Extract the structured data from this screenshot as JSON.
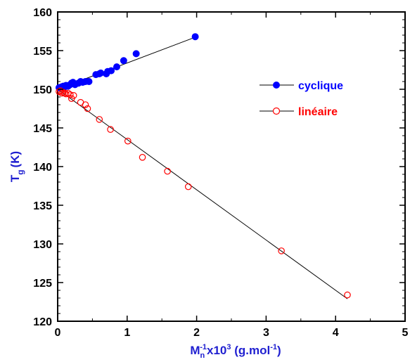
{
  "chart_data": {
    "type": "scatter",
    "xlim": [
      0,
      5
    ],
    "ylim": [
      120,
      160
    ],
    "x_ticks": [
      "0",
      "1",
      "2",
      "3",
      "4",
      "5"
    ],
    "y_ticks": [
      "120",
      "125",
      "130",
      "135",
      "140",
      "145",
      "150",
      "155",
      "160"
    ],
    "ylabel": {
      "base": "T",
      "sub": "g",
      "rest": "(K)"
    },
    "xlabel": {
      "base": "M",
      "sub": "n",
      "sup1": "-1",
      "mid": "x10",
      "sup2": "3",
      "tail": " (g.mol",
      "sup3": "-1",
      "end": ")"
    },
    "grid": false,
    "legend_position": "right-upper",
    "series": [
      {
        "name": "cyclique",
        "color": "#0000ff",
        "marker": "filled-circle",
        "points": [
          [
            0.02,
            150.2
          ],
          [
            0.05,
            150.3
          ],
          [
            0.08,
            150.4
          ],
          [
            0.1,
            150.3
          ],
          [
            0.12,
            150.5
          ],
          [
            0.15,
            150.4
          ],
          [
            0.18,
            150.6
          ],
          [
            0.2,
            150.8
          ],
          [
            0.22,
            150.9
          ],
          [
            0.25,
            150.6
          ],
          [
            0.3,
            150.8
          ],
          [
            0.33,
            151.0
          ],
          [
            0.36,
            150.9
          ],
          [
            0.4,
            151.0
          ],
          [
            0.45,
            151.0
          ],
          [
            0.55,
            151.9
          ],
          [
            0.6,
            152.0
          ],
          [
            0.62,
            152.1
          ],
          [
            0.7,
            152.0
          ],
          [
            0.72,
            152.3
          ],
          [
            0.77,
            152.4
          ],
          [
            0.85,
            152.9
          ],
          [
            0.95,
            153.7
          ],
          [
            1.13,
            154.6
          ],
          [
            1.98,
            156.8
          ]
        ],
        "fit": [
          [
            0.0,
            150.0
          ],
          [
            2.0,
            156.8
          ]
        ]
      },
      {
        "name": "linéaire",
        "color": "#ff0000",
        "marker": "open-circle",
        "points": [
          [
            0.02,
            149.7
          ],
          [
            0.04,
            149.8
          ],
          [
            0.06,
            149.5
          ],
          [
            0.08,
            149.6
          ],
          [
            0.1,
            149.5
          ],
          [
            0.12,
            149.4
          ],
          [
            0.15,
            149.5
          ],
          [
            0.18,
            149.3
          ],
          [
            0.2,
            148.8
          ],
          [
            0.23,
            149.2
          ],
          [
            0.33,
            148.3
          ],
          [
            0.4,
            148.0
          ],
          [
            0.43,
            147.5
          ],
          [
            0.6,
            146.1
          ],
          [
            0.76,
            144.8
          ],
          [
            1.01,
            143.3
          ],
          [
            1.22,
            141.2
          ],
          [
            1.58,
            139.4
          ],
          [
            1.88,
            137.4
          ],
          [
            3.22,
            129.1
          ],
          [
            4.17,
            123.4
          ]
        ],
        "fit": [
          [
            0.0,
            150.0
          ],
          [
            4.17,
            122.9
          ]
        ]
      }
    ]
  }
}
